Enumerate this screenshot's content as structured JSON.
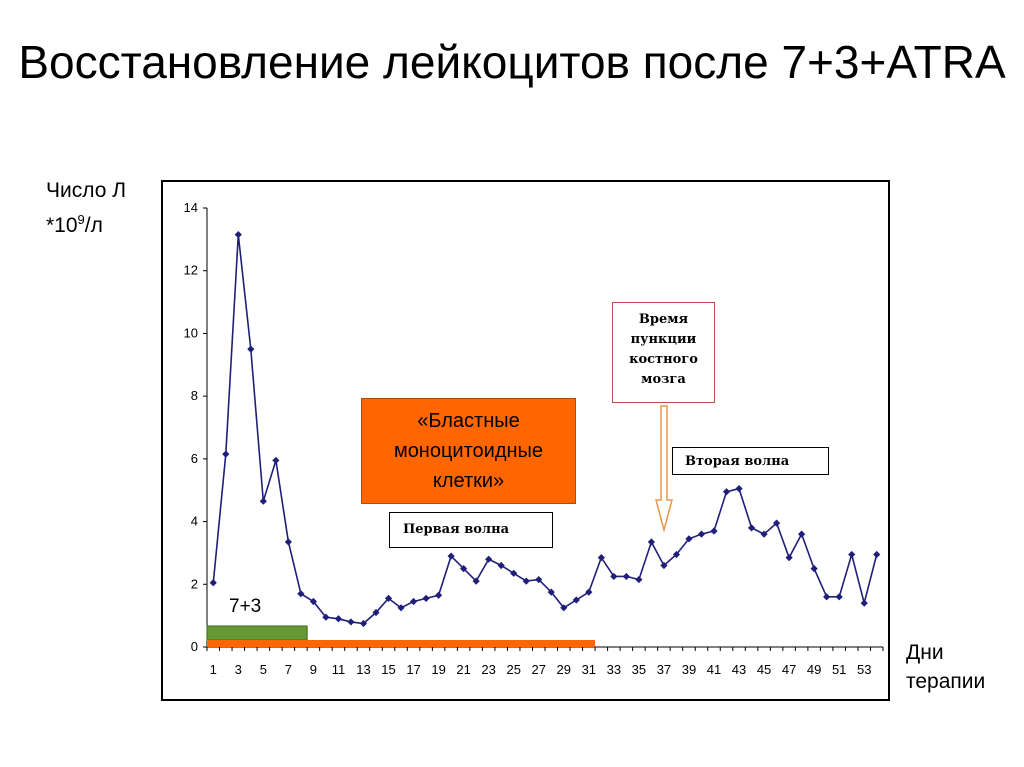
{
  "title": "Восстановление лейкоцитов после 7+3+ATRA",
  "y_axis_label": {
    "line1": "Число Л",
    "line2_prefix": "*10",
    "line2_sup": "9",
    "line2_suffix": "/л"
  },
  "x_axis_label": {
    "line1": "Дни",
    "line2": "терапии"
  },
  "annotations": {
    "blast_box": [
      "«Бластные",
      "моноцитоидные",
      "клетки»"
    ],
    "first_wave": "Первая волна",
    "second_wave": "Вторая волна",
    "puncture": [
      "Время",
      "пункции",
      "костного",
      "мозга"
    ],
    "treatment_bar_label": "7+3"
  },
  "colors": {
    "series": "#1f1f7a",
    "orange": "#ff6600",
    "green": "#669933",
    "arrow": "#e8964c"
  },
  "chart_data": {
    "type": "line",
    "x_ticks": [
      1,
      3,
      5,
      7,
      9,
      11,
      13,
      15,
      17,
      19,
      21,
      23,
      25,
      27,
      29,
      31,
      33,
      35,
      37,
      39,
      41,
      43,
      45,
      47,
      49,
      51,
      53
    ],
    "y_ticks": [
      0,
      2,
      4,
      6,
      8,
      10,
      12,
      14
    ],
    "ylim": [
      0,
      14
    ],
    "xlim": [
      0.5,
      54.5
    ],
    "grid": false,
    "series": [
      {
        "x": [
          1,
          2,
          3,
          4,
          5,
          6,
          7,
          8,
          9,
          10,
          11,
          12,
          13,
          14,
          15,
          16,
          17,
          18,
          19,
          20,
          21,
          22,
          23,
          24,
          25,
          26,
          27,
          28,
          29,
          30,
          31,
          32,
          33,
          34,
          35,
          36,
          37,
          38,
          39,
          40,
          41,
          42,
          43,
          44,
          45,
          46,
          47,
          48,
          49,
          50,
          51,
          52,
          53,
          54
        ],
        "values": [
          2.05,
          6.15,
          13.15,
          9.5,
          4.65,
          5.95,
          3.35,
          1.7,
          1.45,
          0.95,
          0.9,
          0.8,
          0.75,
          1.1,
          1.55,
          1.25,
          1.45,
          1.55,
          1.65,
          2.9,
          2.5,
          2.1,
          2.8,
          2.6,
          2.35,
          2.1,
          2.15,
          1.75,
          1.25,
          1.5,
          1.75,
          2.85,
          2.25,
          2.25,
          2.15,
          3.35,
          2.6,
          2.95,
          3.45,
          3.6,
          3.7,
          4.95,
          5.05,
          3.8,
          3.6,
          3.95,
          2.85,
          3.6,
          2.5,
          1.6,
          1.6,
          2.95,
          1.4,
          2.95
        ]
      }
    ],
    "bars": [
      {
        "label": "7+3",
        "from_day": 1,
        "to_day": 8,
        "color": "#669933"
      },
      {
        "label": "",
        "from_day": 1,
        "to_day": 31,
        "color": "#ff6600"
      }
    ]
  }
}
